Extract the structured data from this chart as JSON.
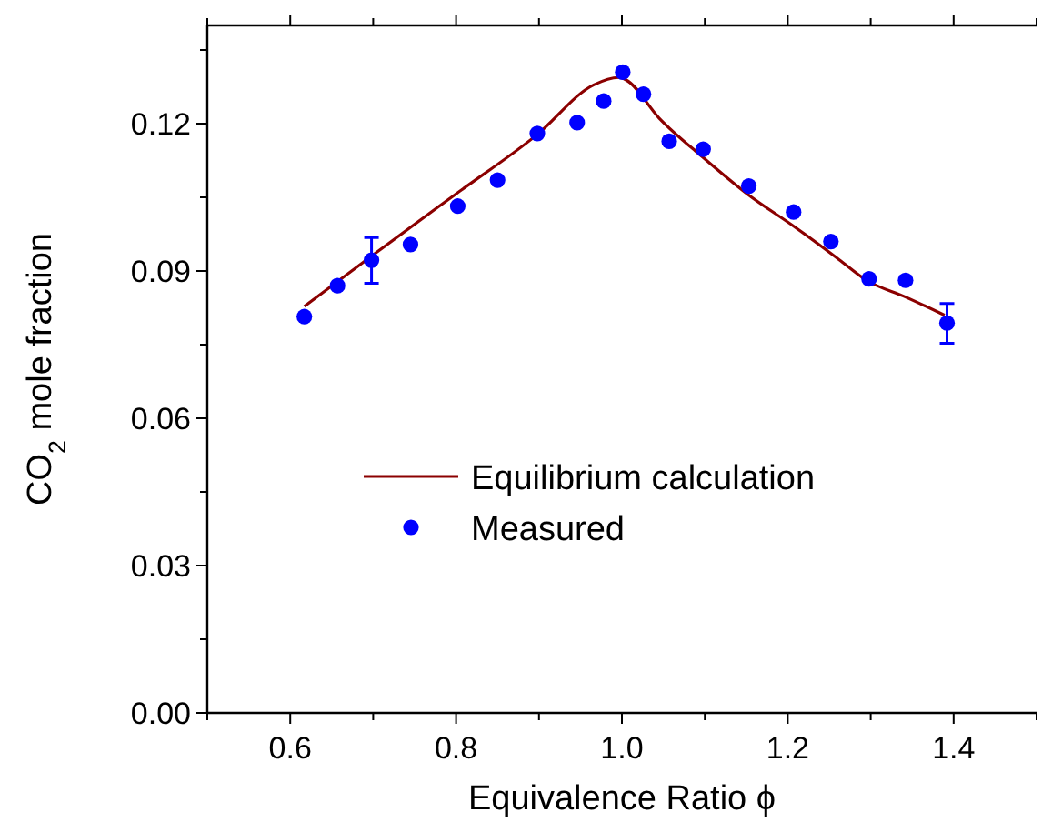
{
  "chart_data": {
    "type": "scatter",
    "xlabel": "Equivalence Ratio ϕ",
    "ylabel": "CO$_{2}$ mole fraction",
    "xlim": [
      0.5,
      1.5
    ],
    "ylim": [
      0,
      0.14
    ],
    "xticks": [
      {
        "value": 0.5,
        "label": null
      },
      0.6,
      {
        "value": 0.7,
        "label": null
      },
      {
        "value": 0.8,
        "label": "0.8"
      },
      {
        "value": 0.9,
        "label": null
      },
      {
        "value": 1.0,
        "label": "1.0"
      },
      {
        "value": 1.1,
        "label": null
      },
      {
        "value": 1.2,
        "label": "1.2"
      },
      {
        "value": 1.3,
        "label": null
      },
      {
        "value": 1.4,
        "label": "1.4"
      },
      {
        "value": 1.5,
        "label": null
      }
    ],
    "yticks": [
      {
        "value": 0,
        "label": "0.00"
      },
      {
        "value": 0.015,
        "label": null
      },
      {
        "value": 0.03,
        "label": "0.03"
      },
      {
        "value": 0.045,
        "label": null
      },
      {
        "value": 0.06,
        "label": "0.06"
      },
      {
        "value": 0.075,
        "label": null
      },
      {
        "value": 0.09,
        "label": "0.09"
      },
      {
        "value": 0.105,
        "label": null
      },
      {
        "value": 0.12,
        "label": "0.12"
      },
      {
        "value": 0.135,
        "label": null
      }
    ],
    "legend": "center",
    "grid": false,
    "series": [
      {
        "name": "Equilibrium calculation",
        "type": "line",
        "color": "#8b0000",
        "marker": "none",
        "line_style": "solid",
        "x": [
          0.617,
          0.7,
          0.8,
          0.898,
          0.966,
          0.996,
          1.005,
          1.045,
          1.098,
          1.151,
          1.209,
          1.259,
          1.295,
          1.342,
          1.389
        ],
        "values": [
          0.0828,
          0.0933,
          0.1057,
          0.1178,
          0.1279,
          0.1294,
          0.1289,
          0.1211,
          0.1131,
          0.1057,
          0.0989,
          0.0927,
          0.0881,
          0.0847,
          0.081
        ]
      },
      {
        "name": "Measured",
        "color": "#0000ff",
        "marker": "circle",
        "x": [
          0.617,
          0.657,
          0.698,
          0.745,
          0.802,
          0.85,
          0.898,
          0.946,
          0.978,
          1.001,
          1.026,
          1.057,
          1.098,
          1.153,
          1.207,
          1.252,
          1.298,
          1.342,
          1.392
        ],
        "values": [
          0.0807,
          0.087,
          0.0922,
          0.0954,
          0.1032,
          0.1085,
          0.118,
          0.1202,
          0.1246,
          0.1305,
          0.126,
          0.1164,
          0.1148,
          0.1073,
          0.102,
          0.096,
          0.0884,
          0.0881,
          0.0794
        ],
        "errors": [
          null,
          null,
          [
            0.0875,
            0.0968
          ],
          null,
          null,
          null,
          null,
          null,
          null,
          null,
          null,
          null,
          null,
          null,
          null,
          null,
          null,
          null,
          [
            0.0753,
            0.0834
          ]
        ]
      }
    ]
  }
}
